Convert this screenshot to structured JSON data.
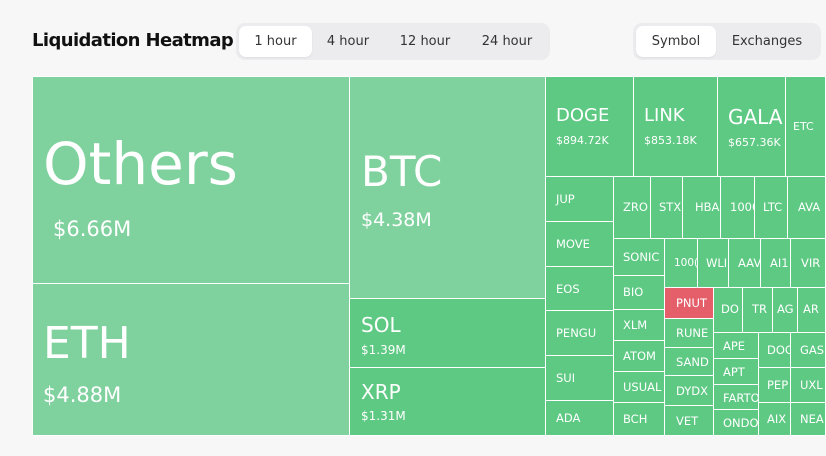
{
  "header": {
    "title": "Liquidation Heatmap",
    "time_tabs": [
      {
        "label": "1 hour",
        "active": true
      },
      {
        "label": "4 hour",
        "active": false
      },
      {
        "label": "12 hour",
        "active": false
      },
      {
        "label": "24 hour",
        "active": false
      }
    ],
    "group_tabs": [
      {
        "label": "Symbol",
        "active": true
      },
      {
        "label": "Exchanges",
        "active": false
      }
    ]
  },
  "colors": {
    "light_green": "#7fd19d",
    "green": "#5ec983",
    "red": "#e45f69"
  },
  "tiles": {
    "others": {
      "symbol": "Others",
      "value": "$6.66M"
    },
    "eth": {
      "symbol": "ETH",
      "value": "$4.88M"
    },
    "btc": {
      "symbol": "BTC",
      "value": "$4.38M"
    },
    "sol": {
      "symbol": "SOL",
      "value": "$1.39M"
    },
    "xrp": {
      "symbol": "XRP",
      "value": "$1.31M"
    },
    "doge": {
      "symbol": "DOGE",
      "value": "$894.72K"
    },
    "link": {
      "symbol": "LINK",
      "value": "$853.18K"
    },
    "gala": {
      "symbol": "GALA",
      "value": "$657.36K"
    },
    "etc": {
      "symbol": "ETC"
    },
    "jup": {
      "symbol": "JUP"
    },
    "move": {
      "symbol": "MOVE"
    },
    "eos": {
      "symbol": "EOS"
    },
    "pengu": {
      "symbol": "PENGU"
    },
    "sui": {
      "symbol": "SUI"
    },
    "ada": {
      "symbol": "ADA"
    },
    "zro": {
      "symbol": "ZRO"
    },
    "stx": {
      "symbol": "STX"
    },
    "hba": {
      "symbol": "HBA"
    },
    "t1000a": {
      "symbol": "1000"
    },
    "ltc": {
      "symbol": "LTC"
    },
    "ava": {
      "symbol": "AVA"
    },
    "sonic": {
      "symbol": "SONIC"
    },
    "bio": {
      "symbol": "BIO"
    },
    "xlm": {
      "symbol": "XLM"
    },
    "atom": {
      "symbol": "ATOM"
    },
    "usual": {
      "symbol": "USUAL"
    },
    "bch": {
      "symbol": "BCH"
    },
    "t1000b": {
      "symbol": "100("
    },
    "wli": {
      "symbol": "WLI"
    },
    "aav": {
      "symbol": "AAV"
    },
    "ai1": {
      "symbol": "AI1"
    },
    "vir": {
      "symbol": "VIR"
    },
    "pnut": {
      "symbol": "PNUT"
    },
    "rune": {
      "symbol": "RUNE"
    },
    "sand": {
      "symbol": "SAND"
    },
    "dydx": {
      "symbol": "DYDX"
    },
    "vet": {
      "symbol": "VET"
    },
    "do": {
      "symbol": "DO"
    },
    "tr": {
      "symbol": "TR"
    },
    "ag": {
      "symbol": "AG"
    },
    "ar": {
      "symbol": "AR"
    },
    "ape": {
      "symbol": "APE"
    },
    "apt": {
      "symbol": "APT"
    },
    "farto": {
      "symbol": "FARTO"
    },
    "ondo": {
      "symbol": "ONDO"
    },
    "doo": {
      "symbol": "DOC"
    },
    "gas": {
      "symbol": "GAS"
    },
    "pep": {
      "symbol": "PEP"
    },
    "uxl": {
      "symbol": "UXL"
    },
    "aix": {
      "symbol": "AIX"
    },
    "nea": {
      "symbol": "NEA"
    }
  }
}
